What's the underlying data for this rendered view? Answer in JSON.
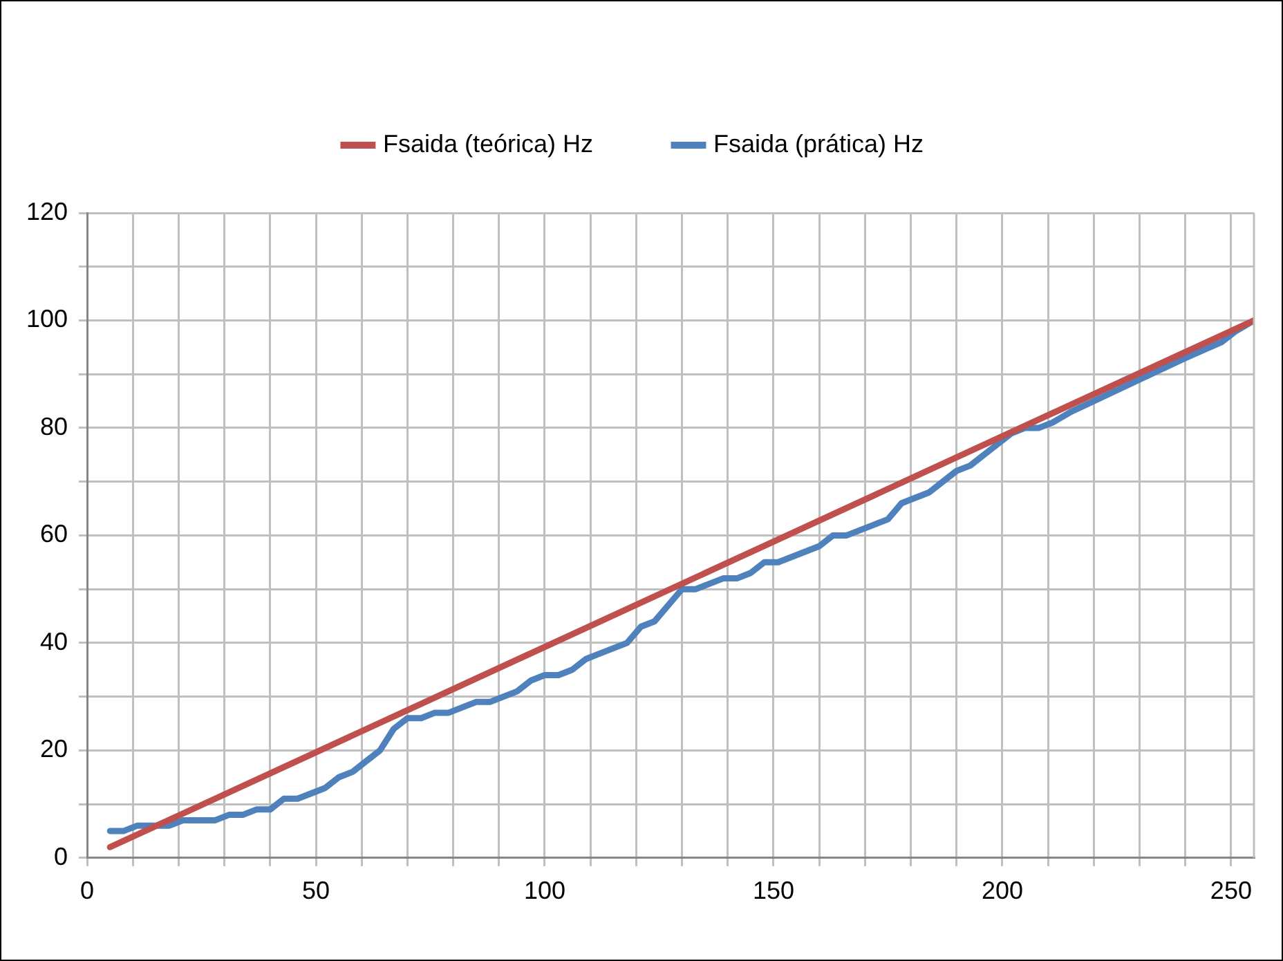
{
  "chart_data": {
    "type": "line",
    "legend": "top",
    "grid": true,
    "marker": "none",
    "line_style": "solid",
    "xlim": [
      0,
      255
    ],
    "ylim": [
      0,
      120
    ],
    "xticks": [
      0,
      {
        "value": 10,
        "label": null
      },
      {
        "value": 20,
        "label": null
      },
      {
        "value": 30,
        "label": null
      },
      {
        "value": 40,
        "label": null
      },
      50,
      {
        "value": 60,
        "label": null
      },
      {
        "value": 70,
        "label": null
      },
      {
        "value": 80,
        "label": null
      },
      {
        "value": 90,
        "label": null
      },
      100,
      {
        "value": 110,
        "label": null
      },
      {
        "value": 120,
        "label": null
      },
      {
        "value": 130,
        "label": null
      },
      {
        "value": 140,
        "label": null
      },
      150,
      {
        "value": 160,
        "label": null
      },
      {
        "value": 170,
        "label": null
      },
      {
        "value": 180,
        "label": null
      },
      {
        "value": 190,
        "label": null
      },
      200,
      {
        "value": 210,
        "label": null
      },
      {
        "value": 220,
        "label": null
      },
      {
        "value": 230,
        "label": null
      },
      {
        "value": 240,
        "label": null
      },
      250
    ],
    "yticks": [
      0,
      {
        "value": 10,
        "label": null
      },
      20,
      {
        "value": 30,
        "label": null
      },
      40,
      {
        "value": 50,
        "label": null
      },
      60,
      {
        "value": 70,
        "label": null
      },
      80,
      {
        "value": 90,
        "label": null
      },
      100,
      {
        "value": 110,
        "label": null
      },
      120
    ],
    "series": [
      {
        "name": "Fsaida (teórica) Hz",
        "color": "#c0504d",
        "x": [
          5,
          255
        ],
        "values": [
          2,
          100
        ]
      },
      {
        "name": "Fsaida (prática) Hz",
        "color": "#4f81bd",
        "x": [
          5,
          8,
          11,
          15,
          18,
          21,
          25,
          28,
          31,
          34,
          37,
          40,
          43,
          46,
          49,
          52,
          55,
          58,
          61,
          64,
          67,
          70,
          73,
          76,
          79,
          82,
          85,
          88,
          91,
          94,
          97,
          100,
          103,
          106,
          109,
          112,
          115,
          118,
          121,
          124,
          127,
          130,
          133,
          136,
          139,
          142,
          145,
          148,
          151,
          154,
          157,
          160,
          163,
          166,
          169,
          172,
          175,
          178,
          181,
          184,
          187,
          190,
          193,
          196,
          199,
          202,
          205,
          208,
          211,
          215,
          220,
          230,
          240,
          248,
          251,
          255
        ],
        "values": [
          5,
          5,
          6,
          6,
          6,
          7,
          7,
          7,
          8,
          8,
          9,
          9,
          11,
          11,
          12,
          13,
          15,
          16,
          18,
          20,
          24,
          26,
          26,
          27,
          27,
          28,
          29,
          29,
          30,
          31,
          33,
          34,
          34,
          35,
          37,
          38,
          39,
          40,
          43,
          44,
          47,
          50,
          50,
          51,
          52,
          52,
          53,
          55,
          55,
          56,
          57,
          58,
          60,
          60,
          61,
          62,
          63,
          66,
          67,
          68,
          70,
          72,
          73,
          75,
          77,
          79,
          80,
          80,
          81,
          83,
          85,
          89,
          93,
          96,
          98,
          100
        ]
      }
    ]
  }
}
